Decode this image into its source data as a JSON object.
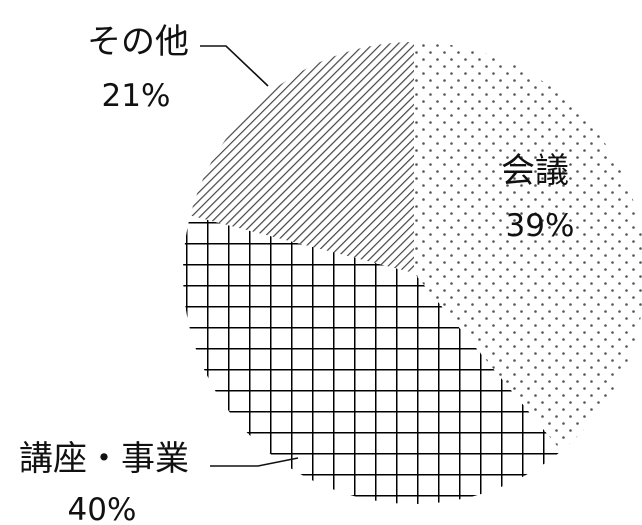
{
  "chart_data": {
    "type": "pie",
    "title": "",
    "slices": [
      {
        "label": "会議",
        "value": 39,
        "value_label": "39%",
        "pattern": "dots"
      },
      {
        "label": "講座・事業",
        "value": 40,
        "value_label": "40%",
        "pattern": "grid"
      },
      {
        "label": "その他",
        "value": 21,
        "value_label": "21%",
        "pattern": "diagonal-stripes"
      }
    ],
    "start_angle_deg": 0,
    "direction": "clockwise",
    "colors": {
      "fill": "#ffffff",
      "ink": "#111111"
    }
  }
}
